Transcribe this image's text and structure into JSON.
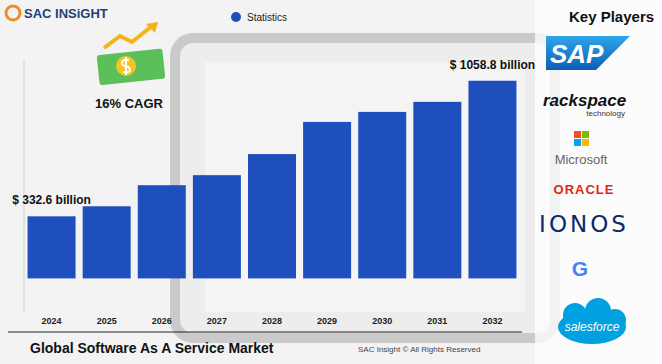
{
  "chart_data": {
    "type": "bar",
    "title": "Global Software As A Service Market",
    "categories": [
      "2024",
      "2025",
      "2026",
      "2027",
      "2028",
      "2029",
      "2030",
      "2031",
      "2032"
    ],
    "series": [
      {
        "name": "Statistics",
        "color": "#1f4fbd",
        "values": [
          332.6,
          386.4,
          499.3,
          553.1,
          666.1,
          838.2,
          892.0,
          945.8,
          1058.8
        ],
        "value_labels": [
          "$ 332.6 billion",
          null,
          null,
          null,
          null,
          null,
          null,
          null,
          "$ 1058.8 billion"
        ]
      }
    ],
    "ylim": [
      -180,
      1170
    ],
    "tick_labels": "x",
    "data_labels": true,
    "grid": false,
    "legend": "top",
    "annotations": [
      "16% CAGR"
    ]
  },
  "header": {
    "brand": "SAC INSiGHT"
  },
  "footer": {
    "credit": "SAC Insight © All Rights Reserved"
  },
  "key_players": {
    "title": "Key Players",
    "items": [
      {
        "name": "SAP"
      },
      {
        "name": "rackspace",
        "tagline": "technology"
      },
      {
        "name": "Microsoft"
      },
      {
        "name": "ORACLE"
      },
      {
        "name": "IONOS"
      },
      {
        "name": "G"
      },
      {
        "name": "salesforce"
      }
    ]
  }
}
